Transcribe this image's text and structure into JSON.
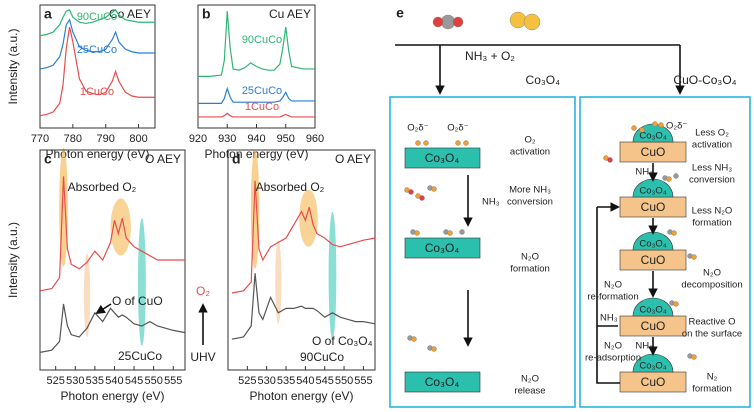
{
  "chart_data": [
    {
      "type": "line",
      "panel": "a",
      "title": "Co AEY",
      "xlabel": "Photon energy (eV)",
      "ylabel": "Intensity (a.u.)",
      "xlim": [
        770,
        805
      ],
      "xticks": [
        770,
        780,
        790,
        800
      ],
      "ylim": [
        0,
        10
      ],
      "x": [
        770,
        772,
        774,
        776,
        777,
        778,
        779,
        780,
        782,
        784,
        786,
        788,
        790,
        792,
        793,
        794,
        796,
        798,
        800,
        802,
        805
      ],
      "series": [
        {
          "name": "90CuCo",
          "color": "#2fb673",
          "values": [
            7.5,
            7.6,
            7.8,
            8.4,
            9.0,
            9.5,
            9.6,
            9.0,
            8.6,
            8.5,
            8.6,
            8.8,
            9.0,
            9.4,
            9.6,
            9.2,
            8.8,
            8.7,
            8.6,
            8.6,
            8.6
          ]
        },
        {
          "name": "25CuCo",
          "color": "#2a7fd4",
          "values": [
            4.8,
            4.9,
            5.1,
            5.8,
            6.8,
            8.4,
            8.8,
            7.8,
            6.6,
            6.3,
            6.2,
            6.2,
            6.4,
            7.2,
            7.8,
            7.0,
            6.4,
            6.2,
            6.1,
            6.1,
            6.1
          ]
        },
        {
          "name": "1CuCo",
          "color": "#e84c4c",
          "values": [
            1.0,
            1.1,
            1.3,
            2.0,
            3.5,
            6.5,
            8.2,
            7.0,
            4.0,
            3.0,
            2.8,
            2.7,
            2.9,
            3.8,
            4.6,
            3.8,
            2.9,
            2.6,
            2.5,
            2.5,
            2.5
          ]
        }
      ]
    },
    {
      "type": "line",
      "panel": "b",
      "title": "Cu AEY",
      "xlabel": "Photon energy (eV)",
      "xlim": [
        920,
        960
      ],
      "xticks": [
        920,
        930,
        940,
        950,
        960
      ],
      "ylim": [
        0,
        10
      ],
      "x": [
        920,
        924,
        928,
        929,
        930,
        931,
        932,
        934,
        936,
        938,
        940,
        942,
        944,
        946,
        948,
        949,
        950,
        951,
        952,
        956,
        960
      ],
      "series": [
        {
          "name": "90CuCo",
          "color": "#2fb673",
          "values": [
            4.2,
            4.2,
            4.3,
            5.5,
            9.5,
            6.5,
            4.8,
            4.7,
            4.9,
            5.3,
            5.0,
            4.8,
            4.7,
            4.7,
            5.2,
            6.5,
            8.2,
            6.3,
            5.0,
            4.8,
            4.8
          ]
        },
        {
          "name": "25CuCo",
          "color": "#2a7fd4",
          "values": [
            2.0,
            2.0,
            2.0,
            2.4,
            3.2,
            2.5,
            2.1,
            2.1,
            2.1,
            2.1,
            2.1,
            2.1,
            2.1,
            2.1,
            2.2,
            2.5,
            2.9,
            2.4,
            2.2,
            2.2,
            2.2
          ]
        },
        {
          "name": "1CuCo",
          "color": "#e84c4c",
          "values": [
            0.9,
            0.9,
            0.9,
            1.0,
            1.2,
            1.0,
            0.9,
            0.9,
            0.9,
            0.9,
            0.9,
            0.9,
            0.9,
            0.9,
            0.9,
            1.0,
            1.1,
            1.0,
            0.9,
            0.9,
            0.9
          ]
        }
      ]
    },
    {
      "type": "line",
      "panel": "c",
      "title": "O AEY",
      "xlabel": "Photon energy (eV)",
      "ylabel": "Intensity (a.u.)",
      "xlim": [
        521,
        558
      ],
      "xticks": [
        525,
        530,
        535,
        540,
        545,
        550,
        555
      ],
      "ylim": [
        0,
        10
      ],
      "x": [
        521,
        524,
        526,
        527,
        528,
        529,
        531,
        533,
        535,
        537,
        539,
        540,
        541,
        542,
        543,
        545,
        547,
        549,
        551,
        553,
        555,
        558
      ],
      "series": [
        {
          "name": "O₂",
          "color": "#e84c4c",
          "values": [
            3.6,
            3.7,
            4.2,
            8.8,
            5.5,
            4.8,
            4.6,
            4.9,
            5.4,
            5.0,
            5.8,
            6.8,
            6.2,
            6.9,
            6.0,
            5.6,
            5.4,
            5.2,
            5.0,
            5.0,
            5.0,
            5.0
          ]
        },
        {
          "name": "UHV",
          "color": "#555555",
          "values": [
            0.8,
            0.9,
            1.3,
            3.0,
            2.0,
            1.6,
            1.5,
            1.9,
            2.6,
            2.2,
            2.8,
            2.6,
            2.4,
            2.5,
            2.4,
            2.1,
            2.0,
            2.2,
            2.0,
            1.9,
            1.8,
            1.7
          ]
        }
      ],
      "annotations": [
        "Absorbed O₂",
        "O of CuO",
        "25CuCo"
      ]
    },
    {
      "type": "line",
      "panel": "d",
      "title": "O AEY",
      "xlabel": "Photon energy (eV)",
      "xlim": [
        520,
        558
      ],
      "xticks": [
        525,
        530,
        535,
        540,
        545,
        550,
        555
      ],
      "ylim": [
        0,
        10
      ],
      "x": [
        521,
        524,
        526,
        527,
        528,
        529,
        531,
        533,
        535,
        537,
        539,
        540,
        541,
        542,
        543,
        545,
        547,
        549,
        551,
        553,
        555,
        558
      ],
      "series": [
        {
          "name": "O₂",
          "color": "#e84c4c",
          "values": [
            3.5,
            3.6,
            4.0,
            8.6,
            5.5,
            5.0,
            5.6,
            5.8,
            6.0,
            6.6,
            7.2,
            6.8,
            7.4,
            6.6,
            6.2,
            6.0,
            5.7,
            5.6,
            5.7,
            5.8,
            5.9,
            6.0
          ]
        },
        {
          "name": "UHV",
          "color": "#555555",
          "values": [
            1.4,
            1.5,
            2.0,
            4.4,
            2.6,
            2.3,
            3.3,
            2.6,
            2.8,
            2.8,
            2.9,
            2.8,
            2.8,
            2.8,
            2.7,
            2.4,
            2.6,
            2.4,
            2.3,
            2.2,
            2.2,
            2.1
          ]
        }
      ],
      "annotations": [
        "Absorbed O₂",
        "O of Co₃O₄",
        "90CuCo"
      ]
    }
  ],
  "diagram": {
    "label": "e",
    "reactants": "NH₃ + O₂",
    "left_title": "Co₃O₄",
    "right_title": "CuO-Co₃O₄",
    "left": {
      "species": "O₂δ⁻",
      "surface": "Co₃O₄",
      "nh3": "NH₃",
      "steps": [
        [
          "O₂",
          "activation"
        ],
        [
          "More NH₃",
          "conversion"
        ],
        [
          "N₂O",
          "formation"
        ],
        [
          "N₂O",
          "release"
        ]
      ]
    },
    "right": {
      "species": "O₂δ⁻",
      "support": "CuO",
      "cluster": "Co₃O₄",
      "nh3": "NH₃",
      "steps": [
        [
          "Less O₂",
          "activation"
        ],
        [
          "Less NH₃",
          "conversion"
        ],
        [
          "Less N₂O",
          "formation"
        ],
        [
          "N₂O",
          "decomposition"
        ],
        [
          "Reactive O",
          "on the surface"
        ],
        [
          "N₂",
          "formation"
        ]
      ],
      "feedback": [
        [
          "N₂O",
          "re-formation"
        ],
        [
          "N₂O",
          "re-adsorption"
        ]
      ]
    }
  }
}
